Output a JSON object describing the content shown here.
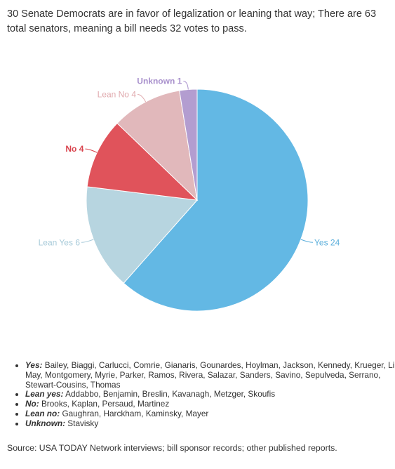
{
  "subtitle": "30 Senate Democrats are in favor of legalization or leaning that way; There are 63 total senators, meaning a bill needs 32 votes to pass.",
  "chart_data": {
    "type": "pie",
    "title": "",
    "slices": [
      {
        "label": "Yes",
        "value": 24,
        "display": "Yes 24",
        "color": "#63b8e4",
        "label_color": "#5aaedb"
      },
      {
        "label": "Lean Yes",
        "value": 6,
        "display": "Lean Yes 6",
        "color": "#b7d5e0",
        "label_color": "#a7cad9"
      },
      {
        "label": "No",
        "value": 4,
        "display": "No 4",
        "color": "#e0535b",
        "label_color": "#d9434d"
      },
      {
        "label": "Lean No",
        "value": 4,
        "display": "Lean No 4",
        "color": "#e1b8bb",
        "label_color": "#e0a9ad"
      },
      {
        "label": "Unknown",
        "value": 1,
        "display": "Unknown 1",
        "color": "#b39dd0",
        "label_color": "#a890cc"
      }
    ],
    "start_angle_deg": 0,
    "direction": "clockwise"
  },
  "legend": [
    {
      "key": "Yes:",
      "names": "Bailey, Biaggi, Carlucci, Comrie, Gianaris, Gounardes, Hoylman, Jackson, Kennedy, Krueger, Liu, May, Montgomery, Myrie, Parker, Ramos, Rivera, Salazar, Sanders, Savino, Sepulveda, Serrano, Stewart-Cousins, Thomas"
    },
    {
      "key": "Lean yes:",
      "names": "Addabbo, Benjamin, Breslin, Kavanagh, Metzger, Skoufis"
    },
    {
      "key": "No:",
      "names": "Brooks, Kaplan, Persaud, Martinez"
    },
    {
      "key": "Lean no:",
      "names": "Gaughran, Harckham, Kaminsky, Mayer"
    },
    {
      "key": "Unknown:",
      "names": "Stavisky"
    }
  ],
  "source": "Source: USA TODAY Network interviews; bill sponsor records; other published reports."
}
